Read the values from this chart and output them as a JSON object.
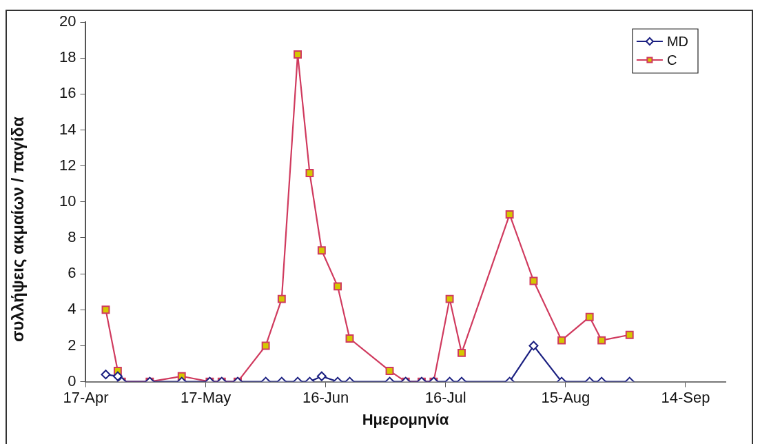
{
  "chart_data": {
    "type": "line",
    "xlabel": "Ημερομηνία",
    "ylabel": "συλλήψεις ακμαίων / παγίδα",
    "x": [
      "--04-22",
      "--04-25",
      "--04-26",
      "--05-03",
      "--05-11",
      "--05-18",
      "--05-21",
      "--05-25",
      "--06-01",
      "--06-05",
      "--06-09",
      "--06-12",
      "--06-15",
      "--06-19",
      "--06-22",
      "--07-02",
      "--07-06",
      "--07-10",
      "--07-13",
      "--07-17",
      "--07-20",
      "--08-01",
      "--08-07",
      "--08-14",
      "--08-21",
      "--08-24",
      "--08-31"
    ],
    "series": [
      {
        "name": "MD",
        "color": "#1a1f80",
        "marker": "diamond",
        "values": [
          0.4,
          0.3,
          0,
          0,
          0,
          0,
          0,
          0,
          0,
          0,
          0,
          0,
          0.3,
          0,
          0,
          0,
          0,
          0,
          0,
          0,
          0,
          0,
          2.0,
          0,
          0,
          0,
          0
        ]
      },
      {
        "name": "C",
        "color": "#d03a5e",
        "marker": "square",
        "values": [
          4.0,
          0.6,
          0,
          0,
          0.3,
          0,
          0,
          0,
          2.0,
          4.6,
          18.2,
          11.6,
          7.3,
          5.3,
          2.4,
          0.6,
          0,
          0,
          0,
          4.6,
          1.6,
          9.3,
          5.6,
          2.3,
          3.6,
          2.3,
          2.6
        ]
      }
    ],
    "xlim": [
      "--04-17",
      "--09-24"
    ],
    "xticks": [
      {
        "value": "--04-17",
        "label": "17-Apr"
      },
      {
        "value": "--05-17",
        "label": "17-May"
      },
      {
        "value": "--06-16",
        "label": "16-Jun"
      },
      {
        "value": "--07-16",
        "label": "16-Jul"
      },
      {
        "value": "--08-15",
        "label": "15-Aug"
      },
      {
        "value": "--09-14",
        "label": "14-Sep"
      }
    ],
    "ylim": [
      0,
      20
    ],
    "yticks": [
      0,
      2,
      4,
      6,
      8,
      10,
      12,
      14,
      16,
      18,
      20
    ],
    "grid": false,
    "legend": "top right",
    "line_style": "solid"
  }
}
